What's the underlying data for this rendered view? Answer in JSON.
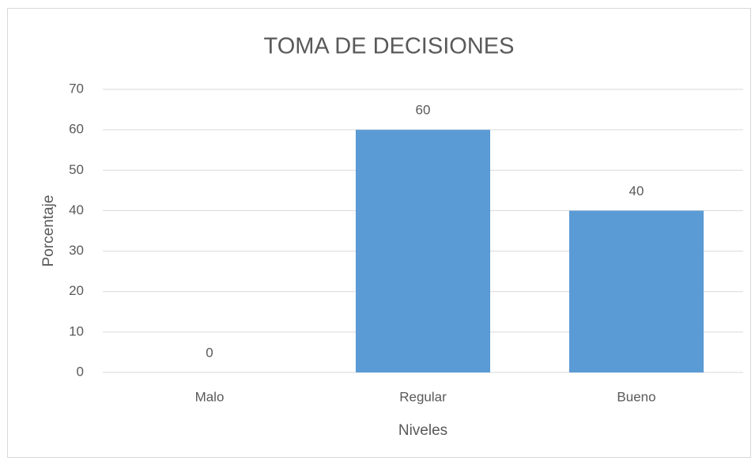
{
  "chart_data": {
    "type": "bar",
    "title": "TOMA DE DECISIONES",
    "x_label": "Niveles",
    "y_label": "Porcentaje",
    "categories": [
      "Malo",
      "Regular",
      "Bueno"
    ],
    "values": [
      0,
      60,
      40
    ],
    "color": "#5b9bd5",
    "ylim": [
      0,
      70
    ],
    "yticks": [
      0,
      10,
      20,
      30,
      40,
      50,
      60,
      70
    ],
    "grid": true
  }
}
